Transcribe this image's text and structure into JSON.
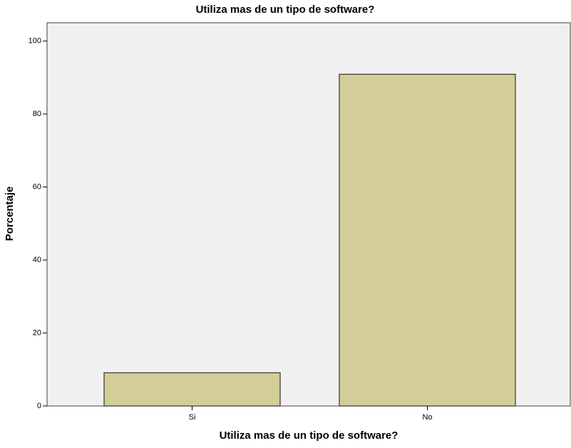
{
  "chart_data": {
    "type": "bar",
    "title": "Utiliza mas de un tipo de software?",
    "x_label": "Utiliza mas de un tipo de software?",
    "y_label": "Porcentaje",
    "categories": [
      "Si",
      "No"
    ],
    "values": [
      9.1,
      90.9
    ],
    "color": "#d3ce97",
    "ylim": [
      0,
      105
    ],
    "yticks": [
      0,
      20,
      40,
      60,
      80,
      100
    ],
    "grid": false
  }
}
